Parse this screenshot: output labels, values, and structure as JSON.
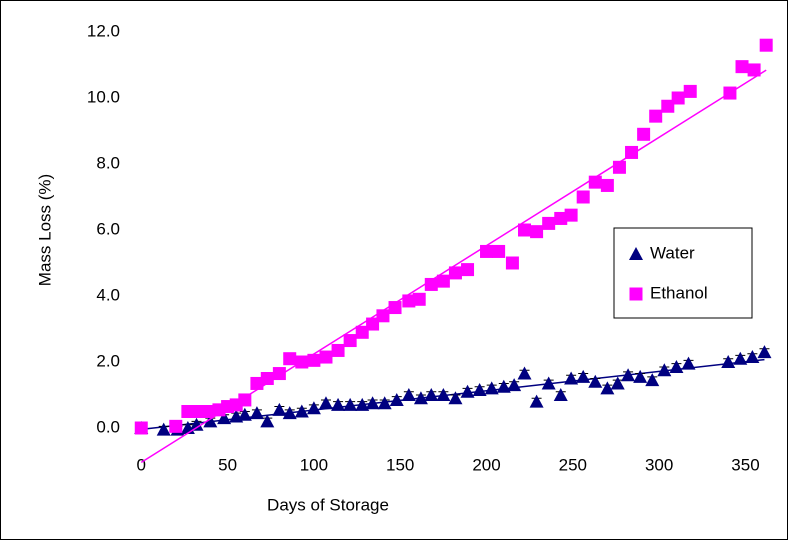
{
  "chart_data": {
    "type": "scatter",
    "x_label": "Days of Storage",
    "y_label": "Mass Loss (%)",
    "xlim": [
      -10,
      370
    ],
    "ylim": [
      -0.5,
      12.5
    ],
    "xticks": [
      0,
      50,
      100,
      150,
      200,
      250,
      300,
      350
    ],
    "yticks": [
      {
        "value": 0,
        "label": "0.0"
      },
      {
        "value": 2,
        "label": "2.0"
      },
      {
        "value": 4,
        "label": "4.0"
      },
      {
        "value": 6,
        "label": "6.0"
      },
      {
        "value": 8,
        "label": "8.0"
      },
      {
        "value": 10,
        "label": "10.0"
      },
      {
        "value": 12,
        "label": "12.0"
      }
    ],
    "legend": "right",
    "trendline": true,
    "series": [
      {
        "name": "Water",
        "color": "#000080",
        "marker": "triangle",
        "error": 0.1,
        "x": [
          0,
          13,
          21,
          27,
          32,
          40,
          48,
          55,
          60,
          67,
          73,
          80,
          86,
          93,
          100,
          107,
          114,
          121,
          128,
          134,
          141,
          148,
          155,
          162,
          168,
          175,
          182,
          189,
          196,
          203,
          210,
          216,
          222,
          229,
          236,
          243,
          249,
          256,
          263,
          270,
          276,
          282,
          289,
          296,
          303,
          310,
          317,
          340,
          347,
          354,
          361
        ],
        "values": [
          0,
          -0.05,
          -0.05,
          0,
          0.1,
          0.2,
          0.3,
          0.35,
          0.4,
          0.45,
          0.2,
          0.55,
          0.45,
          0.5,
          0.6,
          0.75,
          0.7,
          0.7,
          0.7,
          0.75,
          0.75,
          0.85,
          1.0,
          0.9,
          1.0,
          1.0,
          0.9,
          1.1,
          1.15,
          1.2,
          1.25,
          1.3,
          1.65,
          0.8,
          1.35,
          1.0,
          1.5,
          1.55,
          1.4,
          1.2,
          1.35,
          1.6,
          1.55,
          1.45,
          1.75,
          1.85,
          1.95,
          2.0,
          2.1,
          2.15,
          2.3
        ]
      },
      {
        "name": "Ethanol",
        "color": "#ff00ff",
        "marker": "square",
        "error": 0.15,
        "x": [
          0,
          20,
          27,
          32,
          38,
          45,
          50,
          55,
          60,
          67,
          73,
          80,
          86,
          93,
          100,
          107,
          114,
          121,
          128,
          134,
          140,
          147,
          155,
          161,
          168,
          175,
          182,
          189,
          200,
          207,
          215,
          222,
          229,
          236,
          243,
          249,
          256,
          263,
          270,
          277,
          284,
          291,
          298,
          305,
          311,
          318,
          341,
          348,
          355,
          362
        ],
        "values": [
          0,
          0.05,
          0.5,
          0.5,
          0.5,
          0.55,
          0.65,
          0.7,
          0.85,
          1.35,
          1.5,
          1.65,
          2.1,
          2.0,
          2.05,
          2.15,
          2.35,
          2.65,
          2.9,
          3.15,
          3.4,
          3.65,
          3.85,
          3.9,
          4.35,
          4.45,
          4.7,
          4.8,
          5.35,
          5.35,
          5.0,
          6.0,
          5.95,
          6.2,
          6.35,
          6.45,
          7.0,
          7.45,
          7.35,
          7.9,
          8.35,
          8.9,
          9.45,
          9.75,
          10.0,
          10.2,
          10.15,
          10.95,
          10.85,
          11.6
        ]
      }
    ]
  }
}
